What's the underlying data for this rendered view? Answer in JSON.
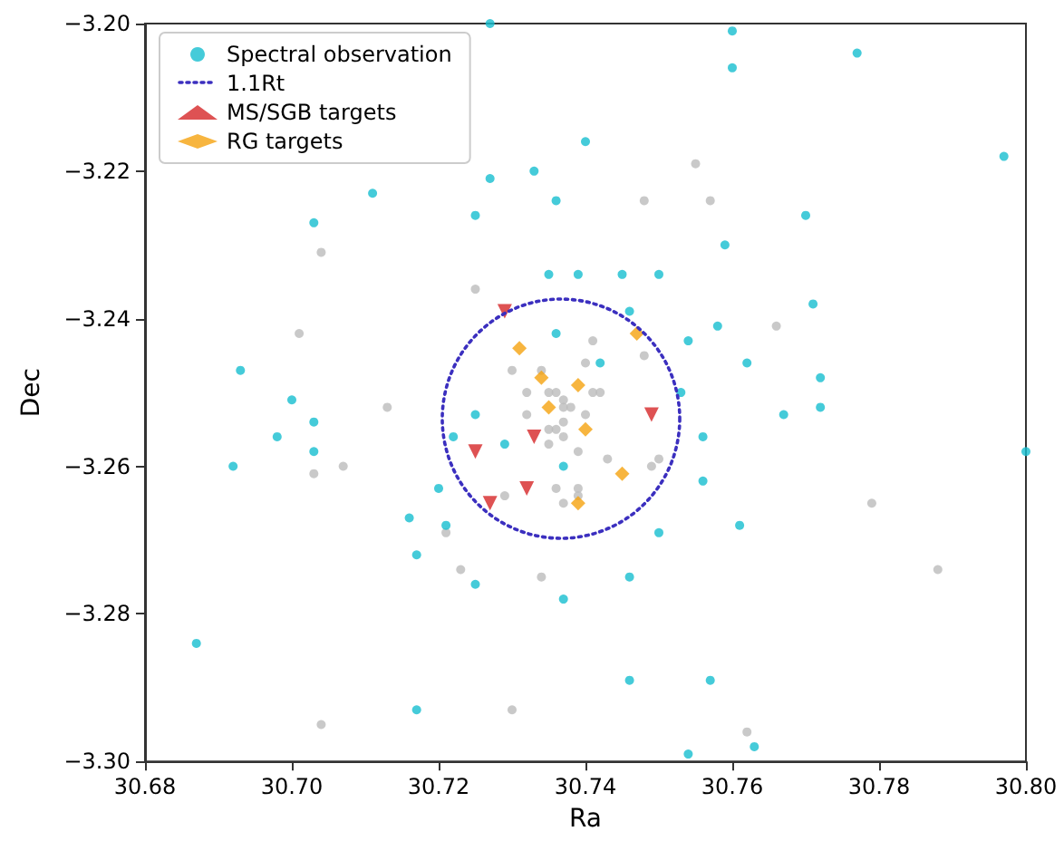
{
  "chart_data": {
    "type": "scatter",
    "xlabel": "Ra",
    "ylabel": "Dec",
    "xlim": [
      30.68,
      30.8
    ],
    "ylim": [
      -3.3,
      -3.2
    ],
    "xticks": [
      30.68,
      {
        "value": 30.7,
        "label": "30.70"
      },
      30.72,
      30.74,
      30.76,
      30.78,
      {
        "value": 30.8,
        "label": "30.80"
      }
    ],
    "yticks": [
      {
        "value": -3.3,
        "label": "−3.30"
      },
      {
        "value": -3.28,
        "label": "−3.28"
      },
      {
        "value": -3.26,
        "label": "−3.26"
      },
      {
        "value": -3.24,
        "label": "−3.24"
      },
      {
        "value": -3.22,
        "label": "−3.22"
      },
      {
        "value": -3.2,
        "label": "−3.20"
      }
    ],
    "grid": false,
    "legend": "top left",
    "annotations": [
      "1.1Rt"
    ],
    "series": [
      {
        "marker": "circle",
        "color": "#bbbbbb",
        "x": [
          30.757,
          30.748,
          30.755,
          30.704,
          30.725,
          30.701,
          30.73,
          30.766,
          30.748,
          30.741,
          30.713,
          30.732,
          30.707,
          30.703,
          30.721,
          30.723,
          30.734,
          30.73,
          30.704,
          30.729,
          30.736,
          30.779,
          30.788,
          30.762,
          30.743,
          30.75,
          30.749,
          30.734,
          30.736,
          30.737,
          30.735,
          30.741,
          30.742,
          30.737,
          30.738,
          30.732,
          30.74,
          30.735,
          30.737,
          30.736,
          30.735,
          30.737,
          30.739,
          30.737,
          30.739,
          30.739,
          30.74
        ],
        "values": [
          -3.224,
          -3.224,
          -3.219,
          -3.231,
          -3.236,
          -3.242,
          -3.247,
          -3.241,
          -3.245,
          -3.243,
          -3.252,
          -3.25,
          -3.26,
          -3.261,
          -3.269,
          -3.274,
          -3.275,
          -3.293,
          -3.295,
          -3.264,
          -3.263,
          -3.265,
          -3.274,
          -3.296,
          -3.259,
          -3.259,
          -3.26,
          -3.247,
          -3.25,
          -3.251,
          -3.25,
          -3.25,
          -3.25,
          -3.252,
          -3.252,
          -3.253,
          -3.253,
          -3.255,
          -3.254,
          -3.255,
          -3.257,
          -3.256,
          -3.258,
          -3.265,
          -3.264,
          -3.263,
          -3.246
        ]
      },
      {
        "name": "Spectral observation",
        "marker": "circle",
        "color": "#17becf",
        "x": [
          30.727,
          30.76,
          30.76,
          30.777,
          30.797,
          30.74,
          30.727,
          30.733,
          30.736,
          30.711,
          30.703,
          30.725,
          30.735,
          30.739,
          30.693,
          30.77,
          30.759,
          30.745,
          30.75,
          30.771,
          30.758,
          30.754,
          30.762,
          30.772,
          30.742,
          30.746,
          30.736,
          30.772,
          30.767,
          30.753,
          30.756,
          30.756,
          30.761,
          30.75,
          30.746,
          30.8,
          30.746,
          30.757,
          30.763,
          30.754,
          30.7,
          30.703,
          30.698,
          30.703,
          30.692,
          30.725,
          30.722,
          30.729,
          30.737,
          30.72,
          30.716,
          30.721,
          30.717,
          30.725,
          30.737,
          30.687,
          30.717
        ],
        "values": [
          -3.2,
          -3.201,
          -3.206,
          -3.204,
          -3.218,
          -3.216,
          -3.221,
          -3.22,
          -3.224,
          -3.223,
          -3.227,
          -3.226,
          -3.234,
          -3.234,
          -3.247,
          -3.226,
          -3.23,
          -3.234,
          -3.234,
          -3.238,
          -3.241,
          -3.243,
          -3.246,
          -3.248,
          -3.246,
          -3.239,
          -3.242,
          -3.252,
          -3.253,
          -3.25,
          -3.256,
          -3.262,
          -3.268,
          -3.269,
          -3.275,
          -3.258,
          -3.289,
          -3.289,
          -3.298,
          -3.299,
          -3.251,
          -3.254,
          -3.256,
          -3.258,
          -3.26,
          -3.253,
          -3.256,
          -3.257,
          -3.26,
          -3.263,
          -3.267,
          -3.268,
          -3.272,
          -3.276,
          -3.278,
          -3.284,
          -3.293
        ]
      },
      {
        "name": "MS/SGB targets",
        "marker": "triangle",
        "color": "#d62728",
        "x": [
          30.729,
          30.725,
          30.733,
          30.732,
          30.727,
          30.749
        ],
        "values": [
          -3.239,
          -3.258,
          -3.256,
          -3.263,
          -3.265,
          -3.253
        ]
      },
      {
        "name": "RG targets",
        "marker": "diamond",
        "color": "#f5a30f",
        "x": [
          30.731,
          30.734,
          30.739,
          30.735,
          30.74,
          30.747,
          30.745,
          30.739
        ],
        "values": [
          -3.244,
          -3.248,
          -3.249,
          -3.252,
          -3.255,
          -3.242,
          -3.261,
          -3.265
        ]
      }
    ]
  }
}
